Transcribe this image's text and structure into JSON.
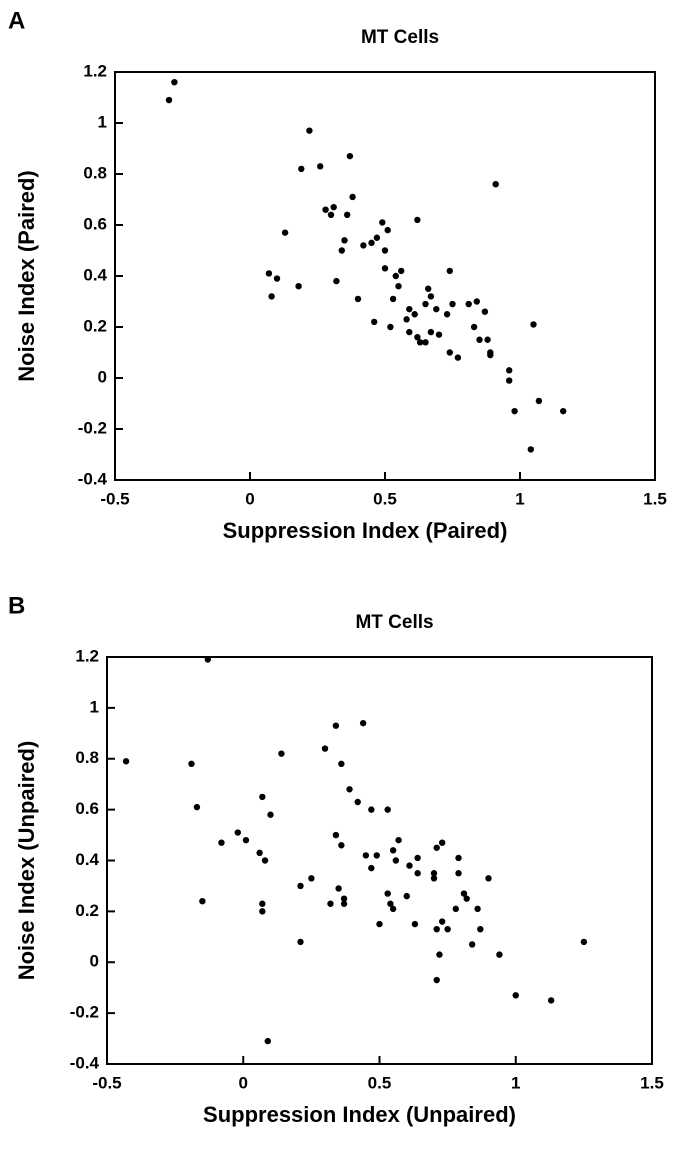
{
  "chart_data": [
    {
      "type": "scatter",
      "panel": "A",
      "title": "MT  Cells",
      "x_label": "Suppression  Index  (Paired)",
      "y_label": "Noise  Index  (Paired)",
      "color": "#000000",
      "xlim": [
        -0.5,
        1.5
      ],
      "ylim": [
        -0.4,
        1.2
      ],
      "xticks": [
        -0.5,
        0,
        0.5,
        1,
        1.5
      ],
      "yticks": [
        -0.4,
        -0.2,
        0,
        0.2,
        0.4,
        0.6,
        0.8,
        1,
        1.2
      ],
      "x": [
        -0.3,
        -0.28,
        0.22,
        0.19,
        0.26,
        0.37,
        0.38,
        0.28,
        0.3,
        0.31,
        0.36,
        0.07,
        0.1,
        0.08,
        0.13,
        0.18,
        0.34,
        0.32,
        0.35,
        0.4,
        0.42,
        0.45,
        0.47,
        0.49,
        0.51,
        0.5,
        0.5,
        0.52,
        0.46,
        0.54,
        0.55,
        0.53,
        0.56,
        0.58,
        0.59,
        0.59,
        0.61,
        0.62,
        0.62,
        0.63,
        0.65,
        0.65,
        0.66,
        0.67,
        0.67,
        0.69,
        0.7,
        0.73,
        0.74,
        0.74,
        0.75,
        0.77,
        0.81,
        0.83,
        0.84,
        0.85,
        0.87,
        0.88,
        0.89,
        0.89,
        0.91,
        0.96,
        0.96,
        0.98,
        1.05,
        1.07,
        1.04,
        1.16
      ],
      "values": [
        1.09,
        1.16,
        0.97,
        0.82,
        0.83,
        0.87,
        0.71,
        0.66,
        0.64,
        0.67,
        0.64,
        0.41,
        0.39,
        0.32,
        0.57,
        0.36,
        0.5,
        0.38,
        0.54,
        0.31,
        0.52,
        0.53,
        0.55,
        0.61,
        0.58,
        0.5,
        0.43,
        0.2,
        0.22,
        0.4,
        0.36,
        0.31,
        0.42,
        0.23,
        0.27,
        0.18,
        0.25,
        0.16,
        0.62,
        0.14,
        0.14,
        0.29,
        0.35,
        0.32,
        0.18,
        0.27,
        0.17,
        0.25,
        0.1,
        0.42,
        0.29,
        0.08,
        0.29,
        0.2,
        0.3,
        0.15,
        0.26,
        0.15,
        0.1,
        0.09,
        0.76,
        0.03,
        -0.01,
        -0.13,
        0.21,
        -0.09,
        -0.28,
        -0.13
      ]
    },
    {
      "type": "scatter",
      "panel": "B",
      "title": "MT  Cells",
      "x_label": "Suppression  Index  (Unpaired)",
      "y_label": "Noise  Index  (Unpaired)",
      "color": "#000000",
      "xlim": [
        -0.5,
        1.5
      ],
      "ylim": [
        -0.4,
        1.2
      ],
      "xticks": [
        -0.5,
        0,
        0.5,
        1,
        1.5
      ],
      "yticks": [
        -0.4,
        -0.2,
        0,
        0.2,
        0.4,
        0.6,
        0.8,
        1,
        1.2
      ],
      "x": [
        -0.43,
        -0.19,
        -0.17,
        -0.15,
        -0.13,
        -0.08,
        -0.02,
        0.01,
        0.07,
        0.06,
        0.08,
        0.1,
        0.07,
        0.07,
        0.09,
        0.14,
        0.21,
        0.21,
        0.25,
        0.3,
        0.34,
        0.32,
        0.34,
        0.36,
        0.36,
        0.35,
        0.37,
        0.37,
        0.39,
        0.42,
        0.44,
        0.45,
        0.47,
        0.47,
        0.49,
        0.5,
        0.53,
        0.53,
        0.54,
        0.55,
        0.55,
        0.56,
        0.57,
        0.6,
        0.61,
        0.64,
        0.64,
        0.63,
        0.7,
        0.7,
        0.71,
        0.71,
        0.71,
        0.73,
        0.72,
        0.73,
        0.75,
        0.78,
        0.79,
        0.79,
        0.81,
        0.82,
        0.84,
        0.86,
        0.87,
        0.9,
        0.94,
        1.0,
        1.13,
        1.25
      ],
      "values": [
        0.79,
        0.78,
        0.61,
        0.24,
        1.19,
        0.47,
        0.51,
        0.48,
        0.65,
        0.43,
        0.4,
        0.58,
        0.23,
        0.2,
        -0.31,
        0.82,
        0.3,
        0.08,
        0.33,
        0.84,
        0.93,
        0.23,
        0.5,
        0.78,
        0.46,
        0.29,
        0.25,
        0.23,
        0.68,
        0.63,
        0.94,
        0.42,
        0.6,
        0.37,
        0.42,
        0.15,
        0.6,
        0.27,
        0.23,
        0.44,
        0.21,
        0.4,
        0.48,
        0.26,
        0.38,
        0.35,
        0.41,
        0.15,
        0.35,
        0.33,
        0.13,
        -0.07,
        0.45,
        0.47,
        0.03,
        0.16,
        0.13,
        0.21,
        0.35,
        0.41,
        0.27,
        0.25,
        0.07,
        0.21,
        0.13,
        0.33,
        0.03,
        -0.13,
        -0.15,
        0.08
      ]
    }
  ]
}
